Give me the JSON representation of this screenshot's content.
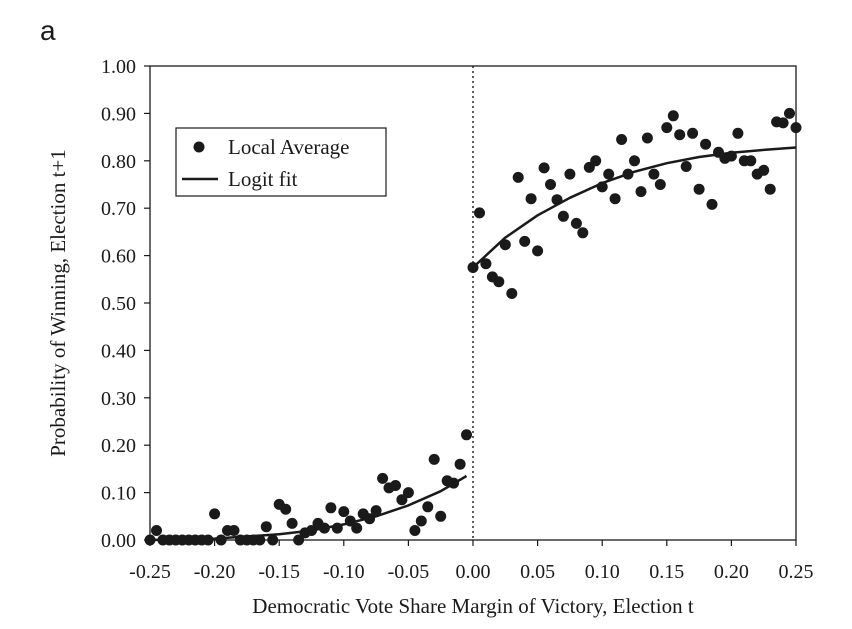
{
  "panel_label": "a",
  "chart_data": {
    "type": "scatter",
    "xlabel": "Democratic Vote Share Margin of  Victory, Election t",
    "ylabel": "Probability of  Winning, Election t+1",
    "xlim": [
      -0.25,
      0.25
    ],
    "ylim": [
      0,
      1
    ],
    "x_ticks": [
      "-0.25",
      "-0.20",
      "-0.15",
      "-0.10",
      "-0.05",
      "0.00",
      "0.05",
      "0.10",
      "0.15",
      "0.20",
      "0.25"
    ],
    "y_ticks": [
      "0.00",
      "0.10",
      "0.20",
      "0.30",
      "0.40",
      "0.50",
      "0.60",
      "0.70",
      "0.80",
      "0.90",
      "1.00"
    ],
    "grid": false,
    "reference_line": {
      "x": 0,
      "style": "dotted"
    },
    "legend": {
      "placement": "upper-left",
      "entries": [
        {
          "label": "Local Average",
          "marker": "dot"
        },
        {
          "label": "Logit fit",
          "marker": "line"
        }
      ]
    },
    "series": [
      {
        "name": "Local Average",
        "kind": "scatter",
        "color": "#1a1a1a",
        "points": [
          [
            -0.25,
            0.0
          ],
          [
            -0.245,
            0.02
          ],
          [
            -0.24,
            0.0
          ],
          [
            -0.235,
            0.0
          ],
          [
            -0.23,
            0.0
          ],
          [
            -0.225,
            0.0
          ],
          [
            -0.22,
            0.0
          ],
          [
            -0.215,
            0.0
          ],
          [
            -0.21,
            0.0
          ],
          [
            -0.205,
            0.0
          ],
          [
            -0.2,
            0.055
          ],
          [
            -0.195,
            0.0
          ],
          [
            -0.19,
            0.02
          ],
          [
            -0.185,
            0.02
          ],
          [
            -0.18,
            0.0
          ],
          [
            -0.175,
            0.0
          ],
          [
            -0.17,
            0.0
          ],
          [
            -0.165,
            0.0
          ],
          [
            -0.16,
            0.028
          ],
          [
            -0.155,
            0.0
          ],
          [
            -0.15,
            0.075
          ],
          [
            -0.145,
            0.065
          ],
          [
            -0.14,
            0.035
          ],
          [
            -0.135,
            0.0
          ],
          [
            -0.13,
            0.015
          ],
          [
            -0.125,
            0.02
          ],
          [
            -0.12,
            0.035
          ],
          [
            -0.115,
            0.025
          ],
          [
            -0.11,
            0.068
          ],
          [
            -0.105,
            0.025
          ],
          [
            -0.1,
            0.06
          ],
          [
            -0.095,
            0.04
          ],
          [
            -0.09,
            0.025
          ],
          [
            -0.085,
            0.055
          ],
          [
            -0.08,
            0.045
          ],
          [
            -0.075,
            0.062
          ],
          [
            -0.07,
            0.13
          ],
          [
            -0.065,
            0.11
          ],
          [
            -0.06,
            0.115
          ],
          [
            -0.055,
            0.085
          ],
          [
            -0.05,
            0.1
          ],
          [
            -0.045,
            0.02
          ],
          [
            -0.04,
            0.04
          ],
          [
            -0.035,
            0.07
          ],
          [
            -0.03,
            0.17
          ],
          [
            -0.025,
            0.05
          ],
          [
            -0.02,
            0.125
          ],
          [
            -0.015,
            0.12
          ],
          [
            -0.01,
            0.16
          ],
          [
            -0.005,
            0.222
          ],
          [
            0.0,
            0.575
          ],
          [
            0.005,
            0.69
          ],
          [
            0.01,
            0.583
          ],
          [
            0.015,
            0.555
          ],
          [
            0.02,
            0.545
          ],
          [
            0.025,
            0.623
          ],
          [
            0.03,
            0.52
          ],
          [
            0.035,
            0.765
          ],
          [
            0.04,
            0.63
          ],
          [
            0.045,
            0.72
          ],
          [
            0.05,
            0.61
          ],
          [
            0.055,
            0.785
          ],
          [
            0.06,
            0.75
          ],
          [
            0.065,
            0.718
          ],
          [
            0.07,
            0.683
          ],
          [
            0.075,
            0.772
          ],
          [
            0.08,
            0.668
          ],
          [
            0.085,
            0.648
          ],
          [
            0.09,
            0.786
          ],
          [
            0.095,
            0.8
          ],
          [
            0.1,
            0.745
          ],
          [
            0.105,
            0.772
          ],
          [
            0.11,
            0.72
          ],
          [
            0.115,
            0.845
          ],
          [
            0.12,
            0.772
          ],
          [
            0.125,
            0.8
          ],
          [
            0.13,
            0.735
          ],
          [
            0.135,
            0.848
          ],
          [
            0.14,
            0.772
          ],
          [
            0.145,
            0.75
          ],
          [
            0.15,
            0.87
          ],
          [
            0.155,
            0.895
          ],
          [
            0.16,
            0.855
          ],
          [
            0.165,
            0.788
          ],
          [
            0.17,
            0.858
          ],
          [
            0.175,
            0.74
          ],
          [
            0.18,
            0.835
          ],
          [
            0.185,
            0.708
          ],
          [
            0.19,
            0.818
          ],
          [
            0.195,
            0.805
          ],
          [
            0.2,
            0.81
          ],
          [
            0.205,
            0.858
          ],
          [
            0.21,
            0.8
          ],
          [
            0.215,
            0.8
          ],
          [
            0.22,
            0.772
          ],
          [
            0.225,
            0.78
          ],
          [
            0.23,
            0.74
          ],
          [
            0.235,
            0.882
          ],
          [
            0.24,
            0.88
          ],
          [
            0.245,
            0.9
          ],
          [
            0.25,
            0.87
          ]
        ]
      },
      {
        "name": "Logit fit",
        "kind": "line",
        "color": "#1a1a1a",
        "segments": [
          [
            [
              -0.25,
              0.0
            ],
            [
              -0.2,
              0.003
            ],
            [
              -0.15,
              0.012
            ],
            [
              -0.125,
              0.02
            ],
            [
              -0.1,
              0.033
            ],
            [
              -0.075,
              0.05
            ],
            [
              -0.05,
              0.073
            ],
            [
              -0.025,
              0.103
            ],
            [
              -0.005,
              0.135
            ]
          ],
          [
            [
              0.0,
              0.575
            ],
            [
              0.025,
              0.638
            ],
            [
              0.05,
              0.685
            ],
            [
              0.075,
              0.722
            ],
            [
              0.1,
              0.753
            ],
            [
              0.125,
              0.777
            ],
            [
              0.15,
              0.795
            ],
            [
              0.175,
              0.808
            ],
            [
              0.2,
              0.817
            ],
            [
              0.225,
              0.823
            ],
            [
              0.25,
              0.828
            ]
          ]
        ]
      }
    ]
  }
}
